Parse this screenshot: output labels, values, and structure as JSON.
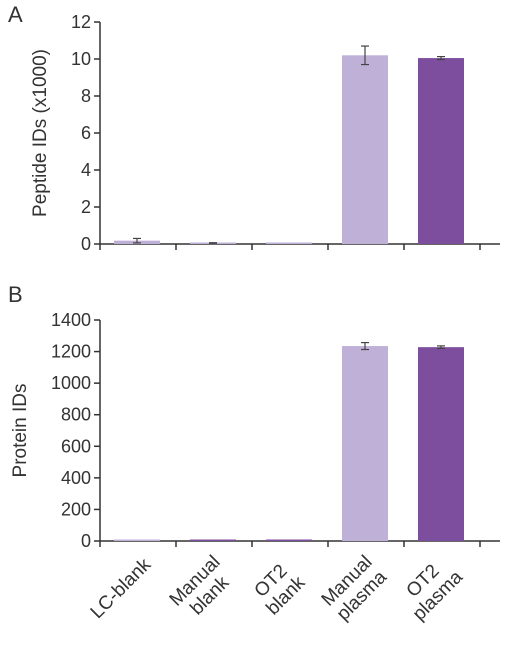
{
  "colors": {
    "light_purple": "#bfb0d8",
    "dark_purple": "#7d4e9e",
    "axis": "#333333",
    "error_bar": "#444444"
  },
  "chart_data": [
    {
      "type": "bar",
      "panel": "A",
      "ylabel": "Peptide IDs (x1000)",
      "ylim": [
        0,
        12
      ],
      "yticks": [
        0,
        2,
        4,
        6,
        8,
        10,
        12
      ],
      "categories": [
        "LC-blank",
        "Manual blank",
        "OT2 blank",
        "Manual plasma",
        "OT2 plasma"
      ],
      "values": [
        0.18,
        0.04,
        0.01,
        10.2,
        10.05
      ],
      "errors": [
        0.12,
        0.03,
        0.0,
        0.5,
        0.08
      ],
      "bar_colors": [
        "#bfb0d8",
        "#bfb0d8",
        "#bfb0d8",
        "#bfb0d8",
        "#7d4e9e"
      ],
      "show_category_labels": false
    },
    {
      "type": "bar",
      "panel": "B",
      "ylabel": "Protein IDs",
      "ylim": [
        0,
        1400
      ],
      "yticks": [
        0,
        200,
        400,
        600,
        800,
        1000,
        1200,
        1400
      ],
      "categories": [
        "LC-blank",
        "Manual blank",
        "OT2 blank",
        "Manual plasma",
        "OT2 plasma"
      ],
      "category_label_lines": [
        [
          "LC-blank"
        ],
        [
          "Manual",
          "blank"
        ],
        [
          "OT2",
          "blank"
        ],
        [
          "Manual",
          "plasma"
        ],
        [
          "OT2",
          "plasma"
        ]
      ],
      "values": [
        0,
        3,
        2,
        1235,
        1228
      ],
      "errors": [
        0,
        0,
        0,
        22,
        8
      ],
      "bar_colors": [
        "#bfb0d8",
        "#7d4e9e",
        "#7d4e9e",
        "#bfb0d8",
        "#7d4e9e"
      ],
      "show_category_labels": true
    }
  ]
}
